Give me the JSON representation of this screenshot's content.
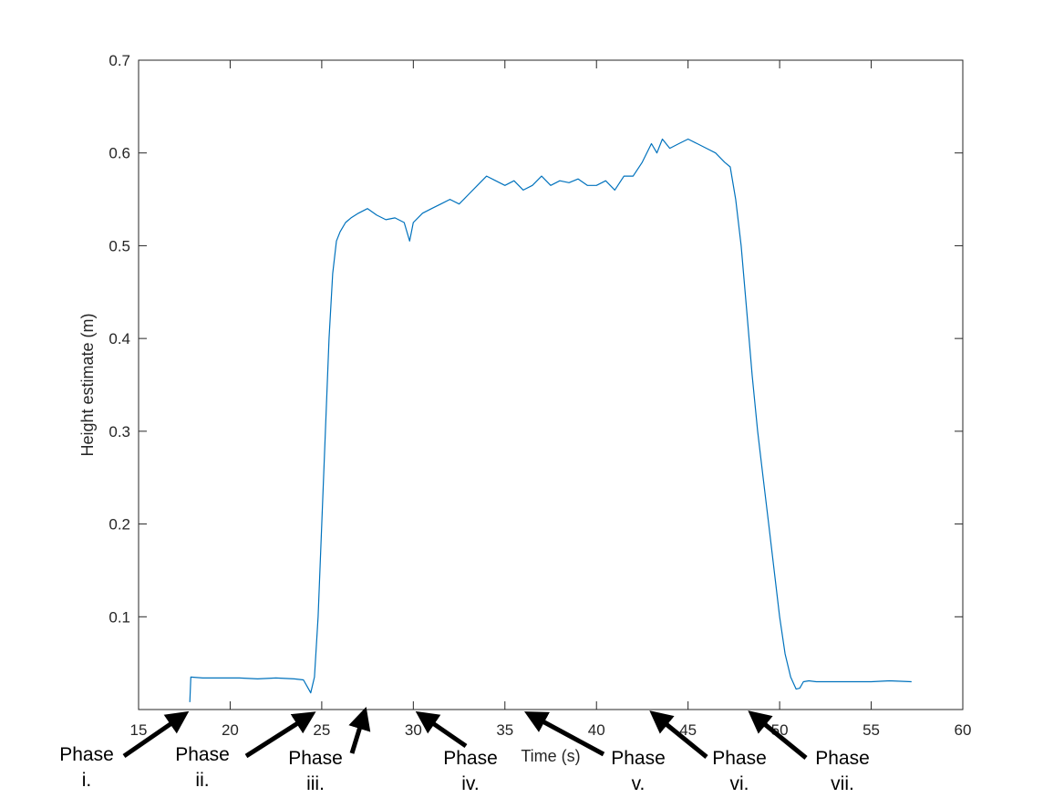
{
  "chart_data": {
    "type": "line",
    "title": "",
    "xlabel": "Time (s)",
    "ylabel": "Height estimate (m)",
    "xlim": [
      15,
      60
    ],
    "ylim": [
      0,
      0.7
    ],
    "x_ticks": [
      15,
      20,
      25,
      30,
      35,
      40,
      45,
      50,
      55,
      60
    ],
    "y_ticks": [
      0.1,
      0.2,
      0.3,
      0.4,
      0.5,
      0.6,
      0.7
    ],
    "grid": false,
    "line_color": "#0072BD",
    "series": [
      {
        "x": [
          17.8,
          17.85,
          18.5,
          19.5,
          20.5,
          21.5,
          22.5,
          23.5,
          24.0,
          24.2,
          24.4,
          24.6,
          24.8,
          25.0,
          25.2,
          25.4,
          25.6,
          25.8,
          26.0,
          26.3,
          26.6,
          27.0,
          27.5,
          28.0,
          28.5,
          29.0,
          29.5,
          29.8,
          30.0,
          30.5,
          31.0,
          31.5,
          32.0,
          32.5,
          33.0,
          33.5,
          34.0,
          34.5,
          35.0,
          35.5,
          36.0,
          36.5,
          37.0,
          37.5,
          38.0,
          38.5,
          39.0,
          39.5,
          40.0,
          40.5,
          41.0,
          41.5,
          42.0,
          42.5,
          43.0,
          43.3,
          43.6,
          44.0,
          44.5,
          45.0,
          45.5,
          46.0,
          46.5,
          47.0,
          47.3,
          47.6,
          47.9,
          48.2,
          48.5,
          48.8,
          49.1,
          49.4,
          49.7,
          50.0,
          50.3,
          50.6,
          50.9,
          51.1,
          51.3,
          51.6,
          52.0,
          53.0,
          54.0,
          55.0,
          56.0,
          57.2
        ],
        "y": [
          0.008,
          0.035,
          0.034,
          0.034,
          0.034,
          0.033,
          0.034,
          0.033,
          0.032,
          0.025,
          0.018,
          0.035,
          0.1,
          0.2,
          0.3,
          0.4,
          0.47,
          0.505,
          0.515,
          0.525,
          0.53,
          0.535,
          0.54,
          0.533,
          0.528,
          0.53,
          0.525,
          0.505,
          0.525,
          0.535,
          0.54,
          0.545,
          0.55,
          0.545,
          0.555,
          0.565,
          0.575,
          0.57,
          0.565,
          0.57,
          0.56,
          0.565,
          0.575,
          0.565,
          0.57,
          0.568,
          0.572,
          0.565,
          0.565,
          0.57,
          0.56,
          0.575,
          0.575,
          0.59,
          0.61,
          0.6,
          0.615,
          0.605,
          0.61,
          0.615,
          0.61,
          0.605,
          0.6,
          0.59,
          0.585,
          0.55,
          0.5,
          0.43,
          0.36,
          0.3,
          0.25,
          0.2,
          0.15,
          0.1,
          0.06,
          0.035,
          0.022,
          0.023,
          0.03,
          0.031,
          0.03,
          0.03,
          0.03,
          0.03,
          0.031,
          0.03
        ]
      }
    ],
    "annotations": [
      {
        "line1": "Phase",
        "line2": "i."
      },
      {
        "line1": "Phase",
        "line2": "ii."
      },
      {
        "line1": "Phase",
        "line2": "iii."
      },
      {
        "line1": "Phase",
        "line2": "iv."
      },
      {
        "line1": "Phase",
        "line2": "v."
      },
      {
        "line1": "Phase",
        "line2": "vi."
      },
      {
        "line1": "Phase",
        "line2": "vii."
      }
    ]
  }
}
